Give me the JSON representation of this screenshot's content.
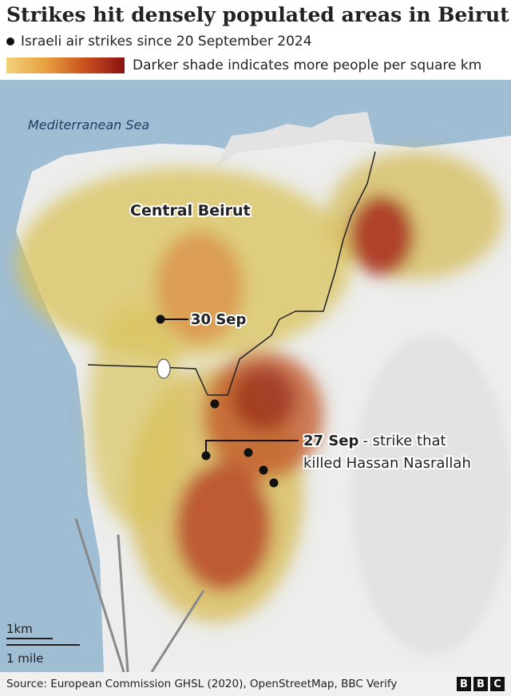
{
  "header": {
    "title": "Strikes hit densely populated areas in Beirut",
    "legend": {
      "strikes": "Israeli air strikes since 20 September 2024",
      "density": "Darker shade indicates more people per square km"
    }
  },
  "map": {
    "sea_label": "Mediterranean Sea",
    "area_label": "Central Beirut",
    "annotations": [
      {
        "date": "30 Sep"
      },
      {
        "date": "27 Sep",
        "lines": [
          "- strike that",
          "killed Hassan Nasrallah"
        ]
      }
    ],
    "scale": {
      "metric": "1km",
      "imperial": "1 mile"
    }
  },
  "footer": {
    "source": "Source: European Commission GHSL (2020), OpenStreetMap, BBC Verify",
    "logo": [
      "B",
      "B",
      "C"
    ]
  }
}
